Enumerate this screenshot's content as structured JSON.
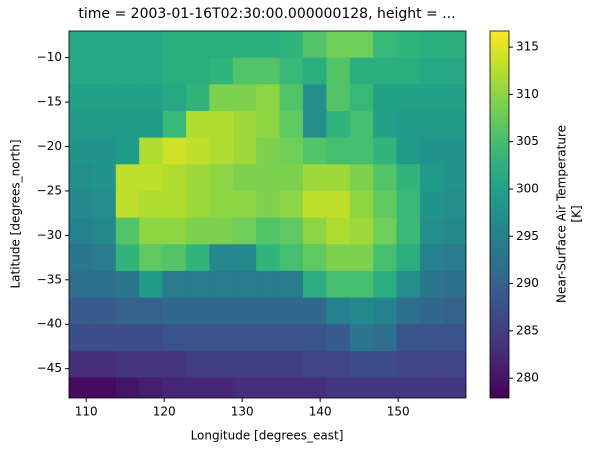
{
  "chart_data": {
    "type": "heatmap",
    "title": "time = 2003-01-16T02:30:00.000000128, height = ...",
    "xlabel": "Longitude [degrees_east]",
    "ylabel": "Latitude [degrees_north]",
    "colorbar_label": [
      "Near-Surface Air Temperature",
      "[K]"
    ],
    "colormap": "viridis",
    "xlim": [
      107.8,
      158.7
    ],
    "ylim": [
      -48.3,
      -7
    ],
    "clim": [
      277.9,
      316.7
    ],
    "xticks": [
      110,
      120,
      130,
      140,
      150
    ],
    "yticks": [
      {
        "value": -10,
        "label": "−10"
      },
      {
        "value": -15,
        "label": "−15"
      },
      {
        "value": -20,
        "label": "−20"
      },
      {
        "value": -25,
        "label": "−25"
      },
      {
        "value": -30,
        "label": "−30"
      },
      {
        "value": -35,
        "label": "−35"
      },
      {
        "value": -40,
        "label": "−40"
      },
      {
        "value": -45,
        "label": "−45"
      }
    ],
    "cticks": [
      280,
      285,
      290,
      295,
      300,
      305,
      310,
      315
    ],
    "x": [
      109.3,
      112.3,
      115.3,
      118.3,
      121.3,
      124.3,
      127.3,
      130.3,
      133.3,
      136.3,
      139.3,
      142.3,
      145.3,
      148.3,
      151.3,
      154.3,
      157.3
    ],
    "y": [
      -8.5,
      -11.5,
      -14.5,
      -17.5,
      -20.5,
      -23.5,
      -26.5,
      -29.5,
      -32.5,
      -35.5,
      -38.5,
      -41.5,
      -44.5,
      -47.5
    ],
    "z": [
      [
        301,
        301,
        301,
        301,
        302,
        302,
        302,
        302,
        302,
        303,
        306,
        308,
        308,
        304,
        303,
        302,
        302
      ],
      [
        301,
        301,
        301,
        301,
        302,
        302,
        303,
        306,
        306,
        304,
        302,
        306,
        302,
        302,
        302,
        301,
        301
      ],
      [
        300,
        300,
        300,
        300,
        301,
        303,
        309,
        309,
        310,
        306,
        297,
        306,
        304,
        300,
        300,
        300,
        300
      ],
      [
        299,
        299,
        299,
        299,
        304,
        312,
        312,
        311,
        310,
        307,
        297,
        303,
        305,
        300,
        299,
        299,
        299
      ],
      [
        298,
        298,
        299,
        312,
        314,
        313,
        312,
        311,
        309,
        308,
        306,
        305,
        305,
        303,
        299,
        298,
        298
      ],
      [
        297,
        298,
        313,
        313,
        312,
        311,
        310,
        309,
        309,
        309,
        311,
        311,
        309,
        306,
        303,
        299,
        298
      ],
      [
        296,
        297,
        313,
        312,
        312,
        311,
        310,
        310,
        309,
        310,
        313,
        313,
        310,
        307,
        304,
        298,
        297
      ],
      [
        295,
        296,
        306,
        310,
        310,
        309,
        309,
        308,
        306,
        307,
        310,
        312,
        311,
        308,
        304,
        297,
        296
      ],
      [
        293,
        294,
        303,
        307,
        306,
        303,
        296,
        296,
        303,
        305,
        307,
        309,
        309,
        305,
        302,
        295,
        294
      ],
      [
        292,
        292,
        293,
        299,
        294,
        294,
        294,
        294,
        294,
        294,
        302,
        305,
        305,
        302,
        297,
        293,
        292
      ],
      [
        289,
        289,
        290,
        290,
        291,
        291,
        291,
        291,
        291,
        291,
        291,
        295,
        296,
        295,
        292,
        291,
        290
      ],
      [
        287,
        287,
        287,
        287,
        288,
        288,
        288,
        288,
        288,
        288,
        288,
        289,
        293,
        292,
        288,
        288,
        288
      ],
      [
        283,
        283,
        284,
        284,
        284,
        285,
        285,
        285,
        285,
        285,
        286,
        286,
        287,
        287,
        286,
        286,
        286
      ],
      [
        279,
        279,
        280,
        281,
        282,
        282,
        282,
        283,
        283,
        283,
        283,
        284,
        284,
        284,
        284,
        284,
        284
      ]
    ]
  }
}
